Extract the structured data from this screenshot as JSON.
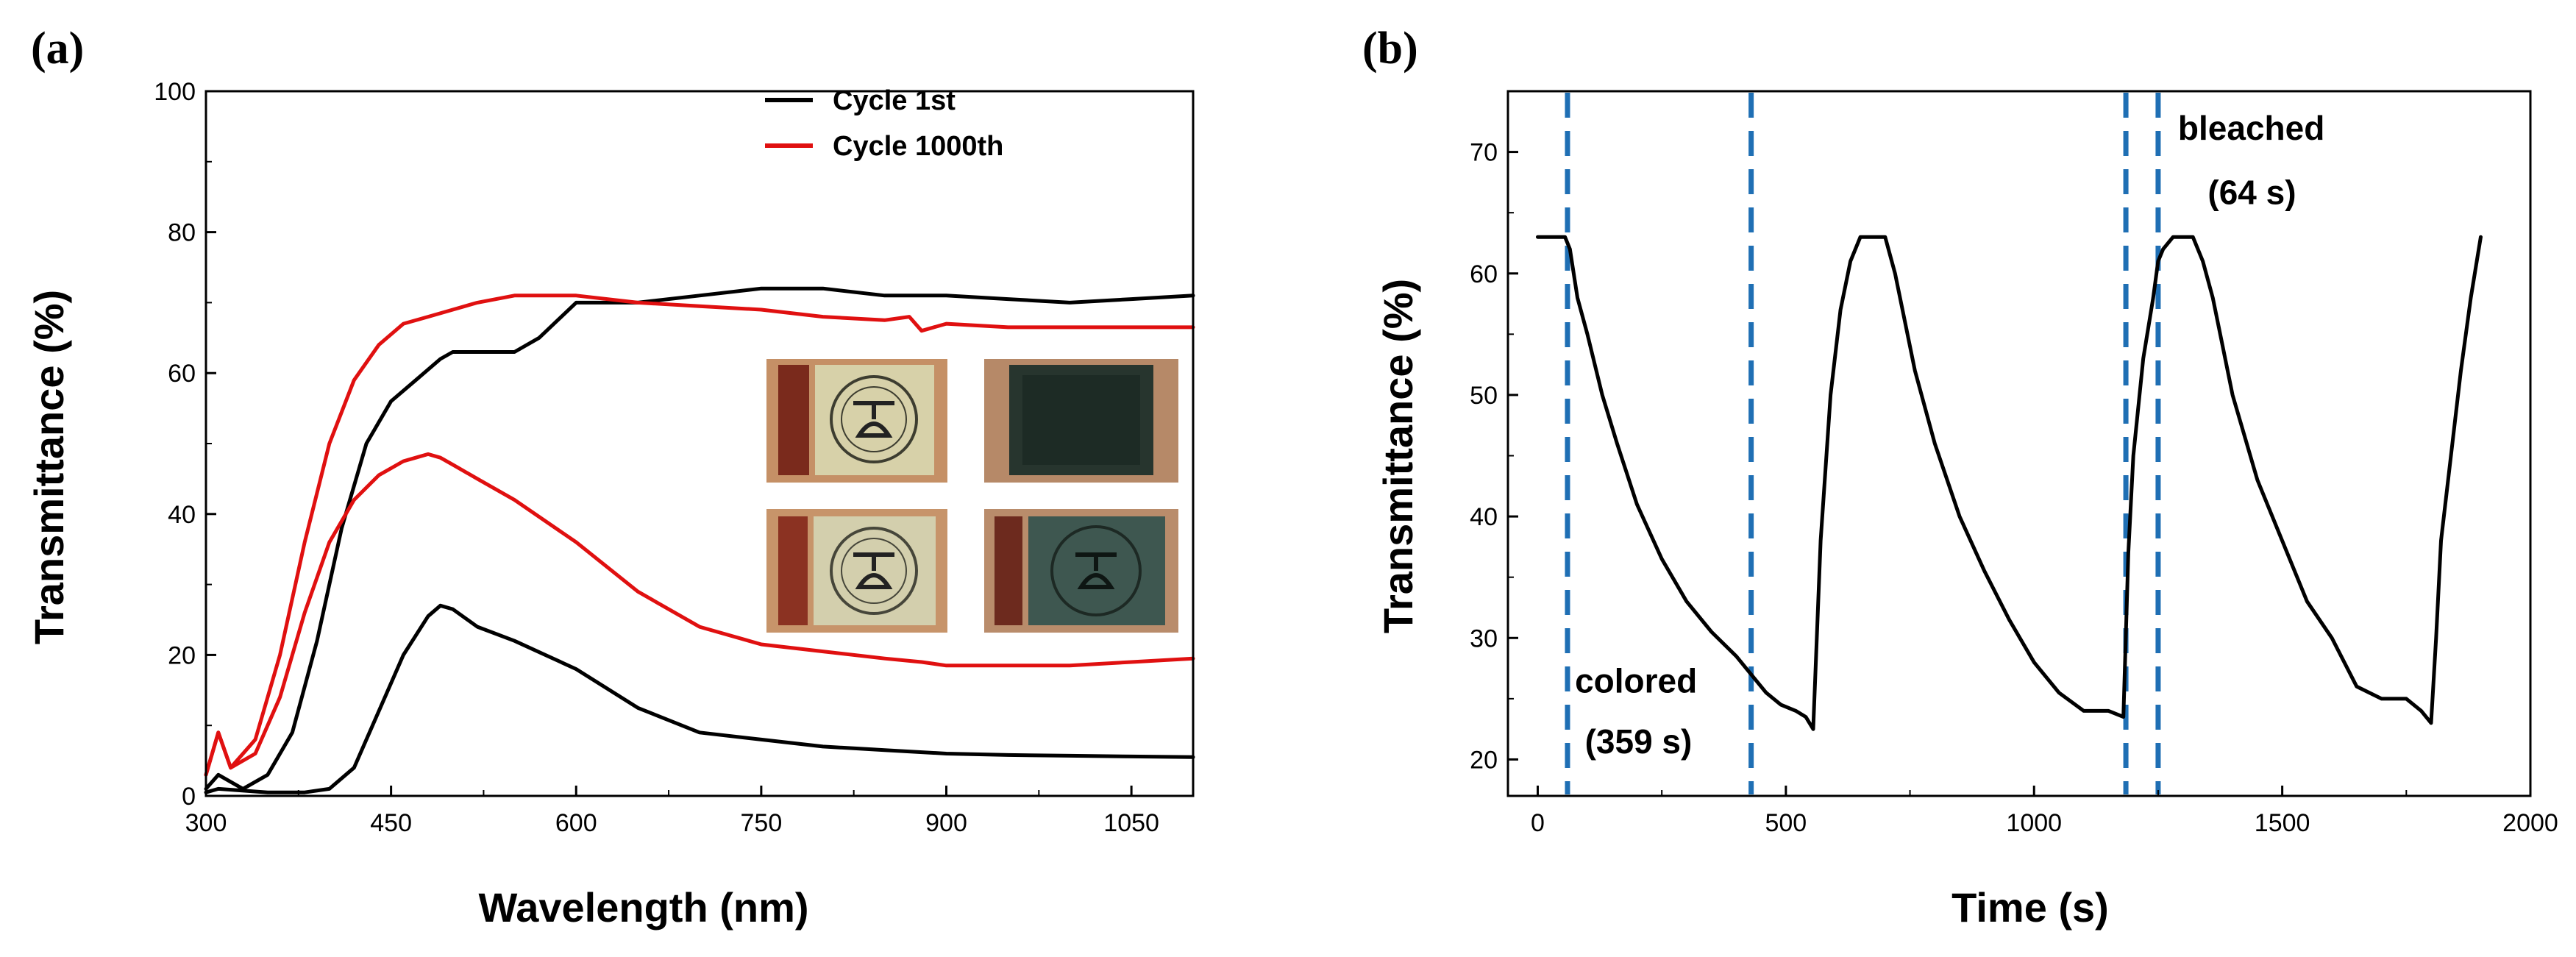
{
  "colors": {
    "black": "#000000",
    "red": "#e01010",
    "blue": "#1f6fb4"
  },
  "chart_data": [
    {
      "type": "line",
      "panel_label": "(a)",
      "xlabel": "Wavelength (nm)",
      "ylabel": "Transmittance (%)",
      "xlim": [
        300,
        1100
      ],
      "ylim": [
        0,
        100
      ],
      "xticks": [
        "300",
        "450",
        "600",
        "750",
        "900",
        "1050"
      ],
      "yticks": [
        "0",
        "20",
        "40",
        "60",
        "80",
        "100"
      ],
      "legend": [
        "Cycle 1st",
        "Cycle 1000th"
      ],
      "legend_position": "top-right",
      "inset": "four photos of the electrochromic device (bleached and colored states)",
      "series": [
        {
          "name": "Cycle 1st",
          "state": "bleached",
          "color": "#000000",
          "show_in_legend": true,
          "x": [
            300,
            310,
            330,
            350,
            370,
            390,
            410,
            430,
            450,
            470,
            490,
            500,
            520,
            550,
            570,
            600,
            630,
            650,
            700,
            750,
            800,
            850,
            900,
            950,
            1000,
            1050,
            1100
          ],
          "y": [
            1,
            3,
            1,
            3,
            9,
            22,
            38,
            50,
            56,
            59,
            62,
            63,
            63,
            63,
            65,
            70,
            70,
            70,
            71,
            72,
            72,
            71,
            71,
            70.5,
            70,
            70.5,
            71
          ]
        },
        {
          "name": "Cycle 1st",
          "state": "colored",
          "color": "#000000",
          "show_in_legend": false,
          "x": [
            300,
            310,
            350,
            380,
            400,
            420,
            440,
            460,
            480,
            490,
            500,
            520,
            550,
            600,
            650,
            700,
            750,
            800,
            850,
            900,
            950,
            1000,
            1050,
            1100
          ],
          "y": [
            0.5,
            1,
            0.5,
            0.5,
            1,
            4,
            12,
            20,
            25.5,
            27,
            26.5,
            24,
            22,
            18,
            12.5,
            9,
            8,
            7,
            6.5,
            6,
            5.8,
            5.7,
            5.6,
            5.5
          ]
        },
        {
          "name": "Cycle 1000th",
          "state": "bleached",
          "color": "#e01010",
          "show_in_legend": true,
          "x": [
            300,
            310,
            320,
            340,
            360,
            380,
            400,
            420,
            440,
            460,
            480,
            500,
            520,
            550,
            600,
            650,
            700,
            750,
            800,
            850,
            870,
            880,
            900,
            950,
            1000,
            1050,
            1100
          ],
          "y": [
            3,
            9,
            4,
            8,
            20,
            36,
            50,
            59,
            64,
            67,
            68,
            69,
            70,
            71,
            71,
            70,
            69.5,
            69,
            68,
            67.5,
            68,
            66,
            67,
            66.5,
            66.5,
            66.5,
            66.5
          ]
        },
        {
          "name": "Cycle 1000th",
          "state": "colored",
          "color": "#e01010",
          "show_in_legend": false,
          "x": [
            300,
            310,
            320,
            340,
            360,
            380,
            400,
            420,
            440,
            460,
            470,
            480,
            490,
            500,
            520,
            550,
            600,
            650,
            700,
            750,
            800,
            850,
            880,
            900,
            950,
            1000,
            1050,
            1100
          ],
          "y": [
            3,
            9,
            4,
            6,
            14,
            26,
            36,
            42,
            45.5,
            47.5,
            48,
            48.5,
            48,
            47,
            45,
            42,
            36,
            29,
            24,
            21.5,
            20.5,
            19.5,
            19,
            18.5,
            18.5,
            18.5,
            19,
            19.5
          ]
        }
      ]
    },
    {
      "type": "line",
      "panel_label": "(b)",
      "xlabel": "Time (s)",
      "ylabel": "Transmittance (%)",
      "xlim": [
        -60,
        2000
      ],
      "ylim": [
        17,
        75
      ],
      "xticks": [
        "0",
        "500",
        "1000",
        "1500",
        "2000"
      ],
      "yticks": [
        "20",
        "30",
        "40",
        "50",
        "60",
        "70"
      ],
      "series": [
        {
          "name": "Transmittance",
          "color": "#000000",
          "x": [
            0,
            55,
            65,
            80,
            100,
            130,
            160,
            200,
            250,
            300,
            350,
            400,
            430,
            460,
            490,
            520,
            540,
            555,
            570,
            590,
            610,
            630,
            650,
            700,
            720,
            740,
            760,
            800,
            850,
            900,
            950,
            1000,
            1050,
            1100,
            1150,
            1180,
            1190,
            1200,
            1220,
            1240,
            1250,
            1260,
            1280,
            1320,
            1340,
            1360,
            1380,
            1400,
            1450,
            1500,
            1550,
            1600,
            1650,
            1700,
            1750,
            1780,
            1800,
            1810,
            1820,
            1840,
            1860,
            1880,
            1900
          ],
          "y": [
            63,
            63,
            62,
            58,
            55,
            50,
            46,
            41,
            36.5,
            33,
            30.5,
            28.5,
            27,
            25.5,
            24.5,
            24,
            23.5,
            22.5,
            38,
            50,
            57,
            61,
            63,
            63,
            60,
            56,
            52,
            46,
            40,
            35.5,
            31.5,
            28,
            25.5,
            24,
            24,
            23.5,
            37,
            45,
            53,
            58,
            61,
            62,
            63,
            63,
            61,
            58,
            54,
            50,
            43,
            38,
            33,
            30,
            26,
            25,
            25,
            24,
            23,
            30,
            38,
            45,
            52,
            58,
            63
          ]
        }
      ],
      "vlines": [
        60,
        430,
        1185,
        1250
      ],
      "annotations": [
        {
          "text": "bleached",
          "x": 1290,
          "y": 71
        },
        {
          "text": "(64 s)",
          "x": 1350,
          "y": 65.7
        },
        {
          "text": "colored",
          "x": 75,
          "y": 25.5
        },
        {
          "text": "(359 s)",
          "x": 95,
          "y": 20.5
        }
      ]
    }
  ]
}
